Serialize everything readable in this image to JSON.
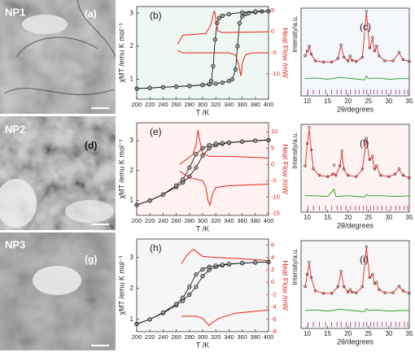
{
  "images": [
    {
      "sample": "NP1",
      "label": "(a)"
    },
    {
      "sample": "NP2",
      "label": "(d)"
    },
    {
      "sample": "NP3",
      "label": "(g)"
    }
  ],
  "chart_data": [
    {
      "type": "line",
      "label": "(b)",
      "x_label": "T /K",
      "y_label": "χMT /emu K mol⁻¹",
      "y2_label": "Heat Flow /mW",
      "y2_color": "#e8231b",
      "background": "#eef7f1",
      "xlim": [
        200,
        400
      ],
      "xticks": [
        200,
        220,
        240,
        260,
        280,
        300,
        320,
        340,
        360,
        380,
        400
      ],
      "ylim": [
        0.4,
        3.2
      ],
      "yticks": [
        1,
        2,
        3
      ],
      "y2lim": [
        -16,
        6
      ],
      "y2ticks": [
        5,
        0,
        -5,
        -10
      ],
      "series": [
        {
          "color": "#000000",
          "marker": "circle",
          "x": [
            200,
            220,
            240,
            260,
            280,
            300,
            310,
            320,
            330,
            340,
            345,
            350,
            353,
            356,
            360,
            365,
            370,
            380,
            390,
            400
          ],
          "values": [
            0.72,
            0.74,
            0.76,
            0.78,
            0.8,
            0.83,
            0.85,
            0.87,
            0.9,
            0.95,
            1.0,
            1.3,
            2.0,
            2.7,
            2.9,
            2.97,
            3.0,
            3.03,
            3.05,
            3.06
          ]
        },
        {
          "color": "#000000",
          "marker": "circle",
          "x": [
            200,
            220,
            240,
            260,
            280,
            300,
            310,
            313,
            316,
            319,
            322,
            325,
            330,
            340,
            360,
            380,
            400
          ],
          "values": [
            0.72,
            0.74,
            0.76,
            0.78,
            0.8,
            0.83,
            0.86,
            0.95,
            1.4,
            2.2,
            2.7,
            2.85,
            2.92,
            2.97,
            3.02,
            3.05,
            3.06
          ]
        },
        {
          "color": "#e8231b",
          "axis": "y2",
          "x": [
            262,
            270,
            290,
            305,
            312,
            316,
            318,
            320,
            323,
            330,
            360,
            400
          ],
          "values": [
            -3,
            -0.8,
            -0.6,
            -0.4,
            1.5,
            4,
            5,
            3,
            0.2,
            -0.2,
            -0.1,
            0
          ]
        },
        {
          "color": "#e8231b",
          "axis": "y2",
          "x": [
            262,
            270,
            300,
            340,
            350,
            355,
            358,
            361,
            365,
            375,
            400
          ],
          "values": [
            -4.5,
            -5,
            -5,
            -5,
            -5.5,
            -8,
            -10.5,
            -7,
            -5.5,
            -5,
            -5
          ]
        }
      ]
    },
    {
      "type": "rietveld",
      "label": "(c)",
      "x_label": "2θ/degrees",
      "y_label": "Intensity/a.u.",
      "background": "#f4f7fc",
      "xlim": [
        8.5,
        35
      ],
      "xticks": [
        10,
        15,
        20,
        25,
        30,
        35
      ],
      "ylim": [
        -30,
        100
      ],
      "colors": {
        "observed": "#333333",
        "calculated": "#e8231b",
        "difference": "#1a9a1a",
        "bragg": "#a0307a"
      },
      "x": [
        9.5,
        10,
        10.5,
        11,
        12,
        14,
        16,
        17.5,
        18.3,
        19,
        20,
        20.5,
        21,
        22,
        23.5,
        24.5,
        25.3,
        26,
        26.5,
        27,
        27.6,
        29,
        31,
        32.5,
        33.5,
        35
      ],
      "observed": [
        22,
        30,
        38,
        25,
        14,
        12,
        12,
        18,
        40,
        20,
        14,
        22,
        15,
        13,
        20,
        95,
        35,
        52,
        30,
        38,
        22,
        14,
        14,
        28,
        16,
        13
      ],
      "calculated": [
        21,
        29,
        37,
        24,
        14,
        12,
        12,
        17,
        39,
        20,
        14,
        21,
        15,
        13,
        19,
        93,
        34,
        51,
        30,
        37,
        22,
        14,
        14,
        27,
        16,
        13
      ],
      "difference_x": [
        9.5,
        12,
        15,
        18,
        21,
        24,
        24.5,
        25,
        27,
        30,
        33,
        35
      ],
      "difference": [
        -15,
        -14,
        -16,
        -13,
        -15,
        -17,
        -11,
        -15,
        -14,
        -16,
        -15,
        -15
      ],
      "bragg_positions": [
        10.2,
        11.5,
        13,
        14.5,
        16,
        17.3,
        18.3,
        19.5,
        20.6,
        21.8,
        22.7,
        23.8,
        24.6,
        25.5,
        26.3,
        27.2,
        28.3,
        29.4,
        30.5,
        31.7,
        32.6,
        33.8,
        34.6
      ]
    },
    {
      "type": "line",
      "label": "(e)",
      "x_label": "T /K",
      "y_label": "χMT /emu K mol⁻¹",
      "y2_label": "Heat Flow /mW",
      "y2_color": "#e8231b",
      "background": "#fff2f1",
      "xlim": [
        200,
        400
      ],
      "xticks": [
        200,
        220,
        240,
        260,
        280,
        300,
        320,
        340,
        360,
        380,
        400
      ],
      "ylim": [
        0.5,
        3.6
      ],
      "yticks": [
        1,
        2,
        3
      ],
      "y2lim": [
        -15.6,
        12.8
      ],
      "y2ticks": [
        10,
        5,
        0,
        -5,
        -10,
        -15
      ],
      "series": [
        {
          "color": "#000000",
          "marker": "circle",
          "x": [
            200,
            220,
            240,
            260,
            270,
            280,
            290,
            300,
            310,
            320,
            330,
            340,
            360,
            380,
            400
          ],
          "values": [
            0.85,
            1.0,
            1.2,
            1.45,
            1.6,
            1.8,
            2.1,
            2.5,
            2.75,
            2.85,
            2.9,
            2.93,
            2.97,
            3.0,
            3.02
          ]
        },
        {
          "color": "#000000",
          "marker": "circle",
          "x": [
            200,
            220,
            240,
            260,
            270,
            280,
            290,
            300,
            310,
            320,
            330,
            340,
            360,
            380,
            400
          ],
          "values": [
            0.85,
            1.0,
            1.2,
            1.5,
            1.7,
            2.1,
            2.55,
            2.75,
            2.85,
            2.9,
            2.92,
            2.94,
            2.97,
            3.0,
            3.02
          ]
        },
        {
          "color": "#e8231b",
          "axis": "y2",
          "x": [
            265,
            275,
            285,
            290,
            293,
            296,
            300,
            310,
            340,
            400
          ],
          "values": [
            0,
            1.5,
            3,
            6,
            10.5,
            7,
            3.5,
            2.5,
            2.5,
            2
          ]
        },
        {
          "color": "#e8231b",
          "axis": "y2",
          "x": [
            265,
            280,
            300,
            305,
            308,
            311,
            315,
            320,
            340,
            400
          ],
          "values": [
            -2,
            -4,
            -5,
            -7,
            -11,
            -12.5,
            -9,
            -7,
            -6.5,
            -6
          ]
        }
      ]
    },
    {
      "type": "rietveld",
      "label": "(f)",
      "x_label": "2θ/degrees",
      "y_label": "Intensity/a.u.",
      "background": "#fdf3f3",
      "xlim": [
        8.5,
        35
      ],
      "xticks": [
        10,
        15,
        20,
        25,
        30,
        35
      ],
      "ylim": [
        -25,
        100
      ],
      "colors": {
        "observed": "#333333",
        "calculated": "#e8231b",
        "difference": "#1a9a1a",
        "bragg": "#a0307a"
      },
      "x": [
        9.5,
        10,
        10.5,
        11,
        11.5,
        13,
        15,
        16.2,
        16.6,
        17,
        18,
        18.5,
        19,
        20,
        22,
        23.5,
        24.5,
        25.3,
        26,
        26.5,
        27,
        28,
        30,
        31.5,
        32.5,
        33.5,
        35
      ],
      "observed": [
        35,
        70,
        95,
        60,
        30,
        20,
        18,
        22,
        36,
        20,
        35,
        58,
        30,
        20,
        18,
        30,
        78,
        45,
        50,
        30,
        35,
        20,
        18,
        22,
        30,
        20,
        16
      ],
      "calculated": [
        33,
        68,
        92,
        58,
        30,
        20,
        18,
        21,
        24,
        20,
        34,
        56,
        29,
        20,
        18,
        29,
        76,
        44,
        48,
        30,
        34,
        20,
        18,
        22,
        29,
        20,
        16
      ],
      "difference_x": [
        9.5,
        12,
        15,
        16.6,
        17,
        20,
        24,
        24.5,
        25,
        28,
        32,
        35
      ],
      "difference": [
        -12,
        -12,
        -13,
        -2,
        -13,
        -12,
        -14,
        -10,
        -12,
        -12,
        -13,
        -12
      ],
      "bragg_positions": [
        10.2,
        11.5,
        13,
        14.5,
        16,
        17.3,
        18.3,
        19.5,
        20.6,
        21.8,
        22.7,
        23.8,
        24.6,
        25.5,
        26.3,
        27.2,
        28.3,
        29.4,
        30.5,
        31.7,
        32.6,
        33.8,
        34.6
      ]
    },
    {
      "type": "line",
      "label": "(h)",
      "x_label": "T /K",
      "y_label": "χMT /emu K mol⁻¹",
      "y2_label": "Heat Flow /mW",
      "y2_color": "#e8231b",
      "background": "#f6f6f6",
      "xlim": [
        200,
        400
      ],
      "xticks": [
        200,
        220,
        240,
        260,
        280,
        300,
        320,
        340,
        360,
        380,
        400
      ],
      "ylim": [
        0.6,
        3.6
      ],
      "yticks": [
        1,
        2,
        3
      ],
      "y2lim": [
        -8,
        7
      ],
      "y2ticks": [
        6,
        4,
        2,
        0,
        -2,
        -4,
        -6,
        -8
      ],
      "series": [
        {
          "color": "#000000",
          "marker": "circle",
          "x": [
            200,
            220,
            240,
            260,
            270,
            280,
            290,
            300,
            310,
            320,
            330,
            340,
            360,
            380,
            400
          ],
          "values": [
            0.85,
            1.0,
            1.2,
            1.45,
            1.6,
            1.8,
            2.05,
            2.4,
            2.6,
            2.7,
            2.75,
            2.78,
            2.82,
            2.84,
            2.86
          ]
        },
        {
          "color": "#000000",
          "marker": "circle",
          "x": [
            200,
            220,
            240,
            260,
            270,
            280,
            290,
            300,
            310,
            320,
            330,
            340,
            360,
            380,
            400
          ],
          "values": [
            0.85,
            1.0,
            1.22,
            1.5,
            1.7,
            2.05,
            2.45,
            2.62,
            2.7,
            2.74,
            2.77,
            2.79,
            2.82,
            2.84,
            2.86
          ]
        },
        {
          "color": "#e8231b",
          "axis": "y2",
          "x": [
            268,
            275,
            282,
            286,
            290,
            300,
            320,
            360,
            400
          ],
          "values": [
            3,
            4.2,
            5,
            5.3,
            5,
            4.2,
            4,
            3.8,
            3.5
          ]
        },
        {
          "color": "#e8231b",
          "axis": "y2",
          "x": [
            268,
            290,
            300,
            305,
            310,
            315,
            325,
            350,
            400
          ],
          "values": [
            -5.5,
            -5.5,
            -5.8,
            -6.5,
            -7,
            -6.5,
            -5.8,
            -5,
            -4.5
          ]
        }
      ]
    },
    {
      "type": "rietveld",
      "label": "(i)",
      "x_label": "2θ/degrees",
      "y_label": "Intensity/a.u.",
      "background": "#f7f7f7",
      "xlim": [
        8.5,
        35
      ],
      "xticks": [
        10,
        15,
        20,
        25,
        30,
        35
      ],
      "ylim": [
        -30,
        100
      ],
      "colors": {
        "observed": "#333333",
        "calculated": "#e8231b",
        "difference": "#1a9a1a",
        "bragg": "#a0307a"
      },
      "x": [
        9.5,
        10,
        10.5,
        11,
        12,
        14,
        16,
        17.5,
        18.3,
        19,
        20,
        20.5,
        21,
        22,
        23.5,
        24.5,
        25.3,
        26,
        26.5,
        27,
        27.6,
        29,
        31,
        32.5,
        33.5,
        35
      ],
      "observed": [
        25,
        45,
        65,
        40,
        18,
        14,
        14,
        25,
        50,
        25,
        16,
        20,
        16,
        15,
        25,
        90,
        40,
        45,
        30,
        32,
        20,
        15,
        15,
        26,
        18,
        14
      ],
      "calculated": [
        24,
        44,
        63,
        39,
        18,
        14,
        14,
        24,
        49,
        25,
        16,
        19,
        16,
        15,
        24,
        88,
        39,
        44,
        30,
        31,
        20,
        15,
        15,
        25,
        18,
        14
      ],
      "difference_x": [
        9.5,
        12,
        15,
        18,
        21,
        24,
        24.5,
        25,
        27,
        30,
        33,
        35
      ],
      "difference": [
        -14,
        -13,
        -15,
        -12,
        -14,
        -16,
        -11,
        -14,
        -13,
        -15,
        -14,
        -14
      ],
      "bragg_positions": [
        10.2,
        11.5,
        13,
        14.5,
        16,
        17.3,
        18.3,
        19.5,
        20.6,
        21.8,
        22.7,
        23.8,
        24.6,
        25.5,
        26.3,
        27.2,
        28.3,
        29.4,
        30.5,
        31.7,
        32.6,
        33.8,
        34.6
      ]
    }
  ]
}
